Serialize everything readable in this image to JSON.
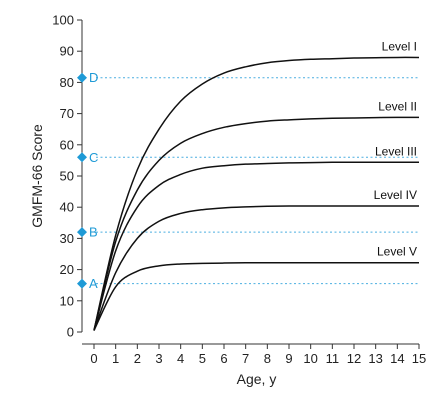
{
  "chart_data": {
    "type": "line",
    "title": "",
    "xlabel": "Age, y",
    "ylabel": "GMFM-66 Score",
    "xlim": [
      0,
      15
    ],
    "ylim": [
      0,
      100
    ],
    "xticks": [
      "0",
      "1",
      "2",
      "3",
      "4",
      "5",
      "6",
      "7",
      "8",
      "9",
      "10",
      "11",
      "12",
      "13",
      "14",
      "15"
    ],
    "yticks": [
      "0",
      "10",
      "20",
      "30",
      "40",
      "50",
      "60",
      "70",
      "80",
      "90",
      "100"
    ],
    "grid": false,
    "legend": "none",
    "series": [
      {
        "name": "Level I",
        "x": [
          0,
          1,
          2,
          3,
          4,
          5,
          6,
          7,
          8,
          9,
          10,
          11,
          12,
          13,
          14,
          15
        ],
        "y": [
          0.5,
          31,
          52,
          65,
          74,
          79.5,
          83,
          85,
          86.3,
          87,
          87.4,
          87.6,
          87.8,
          87.9,
          88,
          88
        ]
      },
      {
        "name": "Level II",
        "x": [
          0,
          1,
          2,
          3,
          4,
          5,
          6,
          7,
          8,
          9,
          10,
          11,
          12,
          13,
          14,
          15
        ],
        "y": [
          0.5,
          29,
          45.5,
          55,
          60.5,
          63.6,
          65.6,
          66.8,
          67.6,
          68,
          68.3,
          68.5,
          68.6,
          68.7,
          68.8,
          68.8
        ]
      },
      {
        "name": "Level III",
        "x": [
          0,
          1,
          2,
          3,
          4,
          5,
          6,
          7,
          8,
          9,
          10,
          11,
          12,
          13,
          14,
          15
        ],
        "y": [
          0.5,
          26,
          40,
          47,
          50.5,
          52.5,
          53.3,
          53.8,
          54,
          54.2,
          54.3,
          54.4,
          54.4,
          54.4,
          54.4,
          54.4
        ]
      },
      {
        "name": "Level IV",
        "x": [
          0,
          1,
          2,
          3,
          4,
          5,
          6,
          7,
          8,
          9,
          10,
          11,
          12,
          13,
          14,
          15
        ],
        "y": [
          0.5,
          19,
          30,
          35.5,
          38,
          39.2,
          39.8,
          40.1,
          40.3,
          40.4,
          40.4,
          40.4,
          40.4,
          40.4,
          40.4,
          40.4
        ]
      },
      {
        "name": "Level V",
        "x": [
          0,
          1,
          2,
          3,
          4,
          5,
          6,
          7,
          8,
          9,
          10,
          11,
          12,
          13,
          14,
          15
        ],
        "y": [
          0.5,
          14.5,
          19.5,
          21.2,
          21.8,
          22,
          22.1,
          22.2,
          22.2,
          22.2,
          22.2,
          22.2,
          22.2,
          22.2,
          22.2,
          22.2
        ]
      }
    ],
    "reference_markers": [
      {
        "label": "A",
        "y": 15.5
      },
      {
        "label": "B",
        "y": 32
      },
      {
        "label": "C",
        "y": 56
      },
      {
        "label": "D",
        "y": 81.5
      }
    ],
    "colors": {
      "curve": "#111111",
      "axis": "#333333",
      "reference_line": "#4aaee0",
      "marker": "#1e9ad6",
      "marker_text": "#1e9ad6"
    }
  }
}
